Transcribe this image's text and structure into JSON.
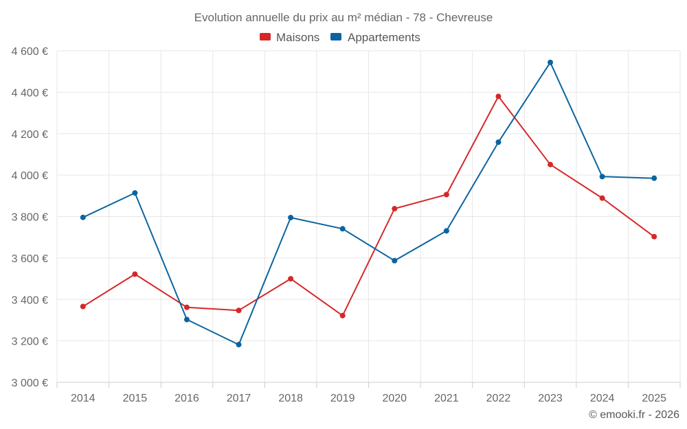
{
  "chart_data": {
    "type": "line",
    "title": "Evolution annuelle du prix au m² médian - 78 - Chevreuse",
    "categories": [
      "2014",
      "2015",
      "2016",
      "2017",
      "2018",
      "2019",
      "2020",
      "2021",
      "2022",
      "2023",
      "2024",
      "2025"
    ],
    "ylim": [
      3000,
      4600
    ],
    "yticks": [
      3000,
      3200,
      3400,
      3600,
      3800,
      4000,
      4200,
      4400,
      4600
    ],
    "ytick_labels": [
      "3 000 €",
      "3 200 €",
      "3 400 €",
      "3 600 €",
      "3 800 €",
      "4 000 €",
      "4 200 €",
      "4 400 €",
      "4 600 €"
    ],
    "grid": true,
    "legend_position": "top-center",
    "series": [
      {
        "name": "Maisons",
        "color": "#d62728",
        "values": [
          3366,
          3522,
          3362,
          3347,
          3500,
          3322,
          3838,
          3906,
          4380,
          4051,
          3889,
          3703
        ]
      },
      {
        "name": "Appartements",
        "color": "#0a64a0",
        "values": [
          3796,
          3914,
          3303,
          3182,
          3795,
          3741,
          3587,
          3731,
          4159,
          4544,
          3993,
          3985
        ]
      }
    ]
  },
  "credit": "© emooki.fr - 2026"
}
